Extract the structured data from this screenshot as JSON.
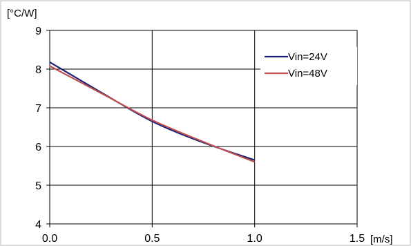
{
  "chart_data": {
    "type": "line",
    "title": "",
    "xlabel": "[m/s]",
    "ylabel": "[°C/W]",
    "xlim": [
      0.0,
      1.5
    ],
    "ylim": [
      4,
      9
    ],
    "x_ticks": [
      "0.0",
      "0.5",
      "1.0",
      "1.5"
    ],
    "y_ticks": [
      "4",
      "5",
      "6",
      "7",
      "8",
      "9"
    ],
    "grid": true,
    "legend_position": "top-right",
    "series": [
      {
        "name": "Vin=24V",
        "color": "#1a1f78",
        "x": [
          0.0,
          0.25,
          0.5,
          0.75,
          1.0
        ],
        "y": [
          8.18,
          7.4,
          6.65,
          6.1,
          5.65
        ]
      },
      {
        "name": "Vin=48V",
        "color": "#c0504d",
        "x": [
          0.0,
          0.25,
          0.5,
          0.75,
          1.0
        ],
        "y": [
          8.08,
          7.38,
          6.68,
          6.12,
          5.6
        ]
      }
    ]
  }
}
